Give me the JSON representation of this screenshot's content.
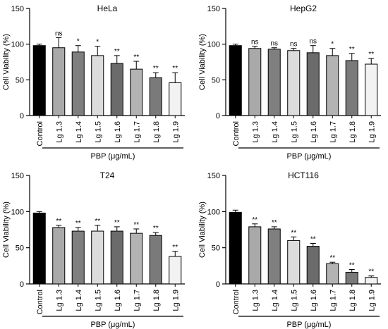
{
  "colors": {
    "control": "#000000",
    "lg13": "#a9a9a9",
    "lg14": "#7f7f7f",
    "lg15": "#dcdcdc",
    "lg16": "#6b6b6b",
    "lg17": "#b3b3b3",
    "lg18": "#7a7a7a",
    "lg19": "#f2f2f2",
    "stroke": "#000000"
  },
  "chart_data": [
    {
      "type": "bar",
      "title": "HeLa",
      "ylabel": "Cell Viability (%)",
      "xlabel": "PBP (μg/mL)",
      "ylim": [
        0,
        150
      ],
      "yticks": [
        "0",
        "50",
        "100",
        "150"
      ],
      "categories": [
        "Control",
        "Lg 1.3",
        "Lg 1.4",
        "Lg 1.5",
        "Lg 1.6",
        "Lg 1.7",
        "Lg 1.8",
        "Lg 1.9"
      ],
      "values": [
        98,
        95,
        89,
        84,
        73,
        65,
        53,
        46
      ],
      "errors": [
        2,
        14,
        9,
        13,
        11,
        11,
        7,
        14
      ],
      "significance": [
        "",
        "ns",
        "*",
        "*",
        "**",
        "**",
        "**",
        "**"
      ]
    },
    {
      "type": "bar",
      "title": "HepG2",
      "ylabel": "Cell Viability (%)",
      "xlabel": "PBP (μg/mL)",
      "ylim": [
        0,
        150
      ],
      "yticks": [
        "0",
        "50",
        "100",
        "150"
      ],
      "categories": [
        "Control",
        "Lg 1.3",
        "Lg 1.4",
        "Lg 1.5",
        "Lg 1.6",
        "Lg 1.7",
        "Lg 1.8",
        "Lg 1.9"
      ],
      "values": [
        98,
        94,
        93,
        91,
        88,
        84,
        77,
        72
      ],
      "errors": [
        2,
        3,
        2,
        3,
        10,
        10,
        10,
        8
      ],
      "significance": [
        "",
        "ns",
        "ns",
        "ns",
        "ns",
        "*",
        "**",
        "**"
      ]
    },
    {
      "type": "bar",
      "title": "T24",
      "ylabel": "Cell Viability (%)",
      "xlabel": "PBP (μg/mL)",
      "ylim": [
        0,
        150
      ],
      "yticks": [
        "0",
        "50",
        "100",
        "150"
      ],
      "categories": [
        "Control",
        "Lg 1.3",
        "Lg 1.4",
        "Lg 1.5",
        "Lg 1.6",
        "Lg 1.7",
        "Lg 1.8",
        "Lg 1.9"
      ],
      "values": [
        98,
        78,
        73,
        73,
        73,
        70,
        67,
        38
      ],
      "errors": [
        2,
        3,
        5,
        8,
        6,
        6,
        4,
        7
      ],
      "significance": [
        "",
        "**",
        "**",
        "**",
        "**",
        "**",
        "**",
        "**"
      ]
    },
    {
      "type": "bar",
      "title": "HCT116",
      "ylabel": "Cell Viability (%)",
      "xlabel": "PBP (μg/mL)",
      "ylim": [
        0,
        150
      ],
      "yticks": [
        "0",
        "50",
        "100",
        "150"
      ],
      "categories": [
        "Control",
        "Lg 1.3",
        "Lg 1.4",
        "Lg 1.5",
        "Lg 1.6",
        "Lg 1.7",
        "Lg 1.8",
        "Lg 1.9"
      ],
      "values": [
        99,
        79,
        76,
        60,
        52,
        28,
        16,
        9
      ],
      "errors": [
        3,
        4,
        3,
        5,
        4,
        2,
        4,
        2
      ],
      "significance": [
        "",
        "**",
        "**",
        "**",
        "**",
        "**",
        "**",
        "**"
      ]
    }
  ]
}
